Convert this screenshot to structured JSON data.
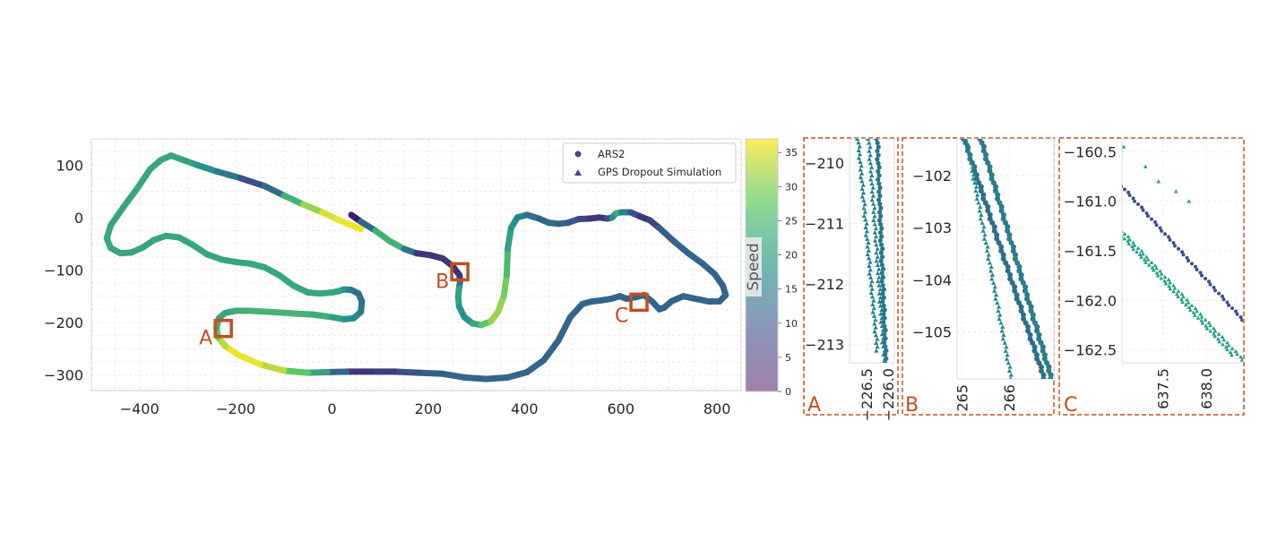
{
  "chart_data": [
    {
      "type": "scatter",
      "xlim": [
        -500,
        850
      ],
      "ylim": [
        -330,
        150
      ],
      "x_ticks": [
        -400,
        -200,
        0,
        200,
        400,
        600,
        800
      ],
      "y_ticks": [
        -300,
        -200,
        -100,
        0,
        100
      ],
      "grid": true,
      "legend": {
        "position": "top-right",
        "entries": [
          "ARS2",
          "GPS Dropout Simulation"
        ]
      },
      "colorbar": {
        "label": "Speed",
        "range": [
          0,
          37
        ],
        "ticks": [
          0,
          5,
          10,
          15,
          20,
          25,
          30,
          35
        ]
      },
      "series": [
        {
          "name": "ARS2",
          "marker": "circle",
          "track": [
            [
              40,
              5
            ],
            [
              60,
              -8
            ],
            [
              90,
              -25
            ],
            [
              120,
              -45
            ],
            [
              150,
              -60
            ],
            [
              175,
              -68
            ],
            [
              205,
              -72
            ],
            [
              230,
              -78
            ],
            [
              250,
              -92
            ],
            [
              265,
              -110
            ],
            [
              266,
              -122
            ],
            [
              264,
              -135
            ],
            [
              262,
              -150
            ],
            [
              264,
              -170
            ],
            [
              275,
              -190
            ],
            [
              292,
              -202
            ],
            [
              310,
              -205
            ],
            [
              330,
              -198
            ],
            [
              345,
              -180
            ],
            [
              357,
              -150
            ],
            [
              363,
              -110
            ],
            [
              365,
              -60
            ],
            [
              372,
              -20
            ],
            [
              385,
              0
            ],
            [
              405,
              5
            ],
            [
              430,
              -2
            ],
            [
              450,
              -10
            ],
            [
              472,
              -12
            ],
            [
              490,
              -10
            ],
            [
              512,
              -3
            ],
            [
              535,
              -2
            ],
            [
              555,
              0
            ],
            [
              572,
              -2
            ],
            [
              582,
              0
            ],
            [
              590,
              8
            ],
            [
              602,
              10
            ],
            [
              620,
              10
            ],
            [
              640,
              2
            ],
            [
              660,
              -5
            ],
            [
              680,
              -20
            ],
            [
              710,
              -45
            ],
            [
              740,
              -68
            ],
            [
              770,
              -88
            ],
            [
              795,
              -108
            ],
            [
              812,
              -130
            ],
            [
              818,
              -148
            ],
            [
              805,
              -160
            ],
            [
              782,
              -160
            ],
            [
              755,
              -155
            ],
            [
              730,
              -150
            ],
            [
              705,
              -160
            ],
            [
              690,
              -172
            ],
            [
              680,
              -175
            ],
            [
              665,
              -160
            ],
            [
              648,
              -148
            ],
            [
              630,
              -152
            ],
            [
              612,
              -155
            ],
            [
              598,
              -150
            ],
            [
              580,
              -155
            ],
            [
              560,
              -158
            ],
            [
              540,
              -160
            ],
            [
              520,
              -165
            ],
            [
              495,
              -190
            ],
            [
              470,
              -235
            ],
            [
              440,
              -272
            ],
            [
              405,
              -295
            ],
            [
              365,
              -305
            ],
            [
              320,
              -308
            ],
            [
              275,
              -305
            ],
            [
              230,
              -298
            ],
            [
              180,
              -296
            ],
            [
              130,
              -294
            ],
            [
              80,
              -294
            ],
            [
              30,
              -294
            ],
            [
              -10,
              -295
            ],
            [
              -50,
              -296
            ],
            [
              -100,
              -292
            ],
            [
              -150,
              -280
            ],
            [
              -195,
              -262
            ],
            [
              -222,
              -245
            ],
            [
              -237,
              -228
            ],
            [
              -240,
              -210
            ],
            [
              -235,
              -192
            ],
            [
              -222,
              -182
            ],
            [
              -200,
              -178
            ],
            [
              -170,
              -178
            ],
            [
              -130,
              -180
            ],
            [
              -80,
              -183
            ],
            [
              -40,
              -185
            ],
            [
              0,
              -190
            ],
            [
              25,
              -194
            ],
            [
              45,
              -192
            ],
            [
              60,
              -180
            ],
            [
              62,
              -160
            ],
            [
              55,
              -145
            ],
            [
              40,
              -138
            ],
            [
              25,
              -137
            ],
            [
              15,
              -140
            ],
            [
              0,
              -143
            ],
            [
              -25,
              -145
            ],
            [
              -50,
              -143
            ],
            [
              -80,
              -130
            ],
            [
              -110,
              -110
            ],
            [
              -140,
              -95
            ],
            [
              -170,
              -88
            ],
            [
              -200,
              -85
            ],
            [
              -230,
              -80
            ],
            [
              -260,
              -70
            ],
            [
              -290,
              -52
            ],
            [
              -318,
              -38
            ],
            [
              -345,
              -35
            ],
            [
              -370,
              -43
            ],
            [
              -395,
              -58
            ],
            [
              -418,
              -67
            ],
            [
              -440,
              -68
            ],
            [
              -460,
              -58
            ],
            [
              -468,
              -40
            ],
            [
              -460,
              -15
            ],
            [
              -435,
              18
            ],
            [
              -405,
              55
            ],
            [
              -378,
              92
            ],
            [
              -355,
              110
            ],
            [
              -335,
              118
            ],
            [
              -310,
              110
            ],
            [
              -280,
              100
            ],
            [
              -240,
              88
            ],
            [
              -190,
              75
            ],
            [
              -140,
              60
            ],
            [
              -100,
              42
            ],
            [
              -60,
              25
            ],
            [
              -20,
              10
            ],
            [
              10,
              -3
            ],
            [
              40,
              -15
            ],
            [
              60,
              -22
            ]
          ],
          "speed": [
            3,
            3,
            22,
            25,
            23,
            6,
            6,
            6,
            6,
            5,
            8,
            20,
            22,
            20,
            18,
            20,
            25,
            30,
            32,
            30,
            28,
            22,
            20,
            18,
            15,
            12,
            12,
            14,
            10,
            10,
            6,
            6,
            6,
            12,
            25,
            20,
            12,
            6,
            6,
            10,
            12,
            12,
            12,
            12,
            12,
            12,
            12,
            12,
            12,
            12,
            12,
            12,
            12,
            12,
            12,
            12,
            12,
            12,
            12,
            12,
            12,
            12,
            12,
            12,
            12,
            12,
            12,
            12,
            12,
            12,
            10,
            8,
            6,
            6,
            18,
            25,
            30,
            36,
            36,
            36,
            30,
            25,
            22,
            22,
            22,
            24,
            24,
            24,
            24,
            22,
            20,
            18,
            16,
            14,
            13,
            14,
            18,
            20,
            22,
            22,
            22,
            22,
            22,
            22,
            22,
            22,
            22,
            22,
            22,
            22,
            22,
            22,
            22,
            22,
            22,
            22,
            22,
            22,
            22,
            22,
            22,
            22,
            22,
            22,
            20,
            18,
            12,
            6,
            20,
            28,
            34,
            36,
            36,
            36
          ]
        },
        {
          "name": "GPS Dropout Simulation",
          "marker": "triangle"
        }
      ],
      "zoom_boxes": [
        {
          "label": "A",
          "x": -226,
          "y": -211.5
        },
        {
          "label": "B",
          "x": 265.5,
          "y": -103.5
        },
        {
          "label": "C",
          "x": 637.8,
          "y": -161.5
        }
      ]
    },
    {
      "panel": "A",
      "type": "scatter",
      "xlim": [
        226.9,
        225.85
      ],
      "ylim": [
        -213.3,
        -209.6
      ],
      "x_ticks": [
        226.5,
        226.0
      ],
      "x_tick_labels": [
        "−226.5",
        "−226.0"
      ],
      "y_ticks": [
        -213,
        -212,
        -211,
        -210
      ],
      "series": [
        {
          "name": "ARS2",
          "line": [
            [
              226.25,
              -209.6
            ],
            [
              226.05,
              -213.3
            ]
          ]
        },
        {
          "name": "GPS Dropout Simulation",
          "lines": [
            [
              [
                226.45,
                -209.6
              ],
              [
                226.08,
                -213.3
              ]
            ],
            [
              [
                226.7,
                -209.6
              ],
              [
                226.25,
                -213.1
              ]
            ]
          ]
        }
      ]
    },
    {
      "panel": "B",
      "type": "scatter",
      "xlim": [
        264.9,
        266.95
      ],
      "ylim": [
        -105.9,
        -101.3
      ],
      "x_ticks": [
        265,
        266
      ],
      "y_ticks": [
        -105,
        -104,
        -103,
        -102
      ],
      "series": [
        {
          "name": "ARS2",
          "lines": [
            [
              [
                265.4,
                -101.3
              ],
              [
                266.9,
                -105.9
              ]
            ],
            [
              [
                265.05,
                -101.3
              ],
              [
                266.75,
                -105.9
              ]
            ]
          ]
        },
        {
          "name": "GPS Dropout Simulation",
          "lines": [
            [
              [
                265.1,
                -101.3
              ],
              [
                266.05,
                -105.9
              ]
            ],
            [
              [
                265.4,
                -101.3
              ],
              [
                266.9,
                -105.9
              ]
            ]
          ]
        }
      ]
    },
    {
      "panel": "C",
      "type": "scatter",
      "xlim": [
        637.03,
        638.42
      ],
      "ylim": [
        -162.63,
        -160.37
      ],
      "x_ticks": [
        637.5,
        638.0
      ],
      "y_ticks": [
        -162.5,
        -162.0,
        -161.5,
        -161.0,
        -160.5
      ],
      "series": [
        {
          "name": "ARS2",
          "line": [
            [
              637.03,
              -160.85
            ],
            [
              638.42,
              -162.2
            ]
          ]
        },
        {
          "name": "GPS Dropout Simulation",
          "lines": [
            [
              [
                637.03,
                -161.3
              ],
              [
                638.42,
                -162.6
              ]
            ],
            [
              [
                637.03,
                -161.35
              ],
              [
                638.3,
                -162.55
              ]
            ]
          ],
          "scattered": [
            [
              637.05,
              -160.45
            ],
            [
              637.3,
              -160.65
            ],
            [
              637.45,
              -160.8
            ],
            [
              637.65,
              -160.9
            ],
            [
              637.8,
              -161.0
            ]
          ]
        }
      ]
    }
  ]
}
